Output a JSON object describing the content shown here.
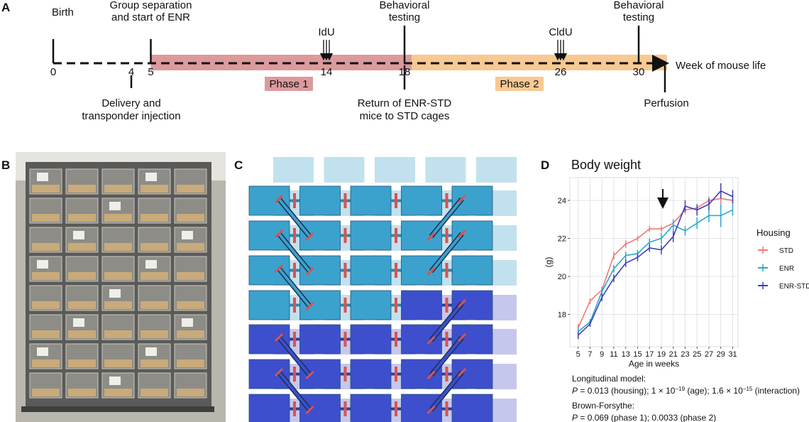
{
  "panel_a": {
    "letter": "A",
    "axis_label": "Week of mouse life",
    "weeks": [
      0,
      4,
      5,
      14,
      18,
      26,
      30
    ],
    "above": [
      {
        "lines": [
          "Birth"
        ]
      },
      {
        "lines": [
          "Group separation",
          "and start of ENR"
        ]
      },
      {
        "lines": [
          "IdU"
        ]
      },
      {
        "lines": [
          "Behavioral",
          "testing"
        ]
      },
      {
        "lines": [
          "CldU"
        ]
      },
      {
        "lines": [
          "Behavioral",
          "testing"
        ]
      }
    ],
    "below": [
      {
        "lines": [
          "Delivery and",
          "transponder injection"
        ]
      },
      {
        "lines": [
          "Return of ENR-STD",
          "mice to STD cages"
        ]
      },
      {
        "lines": [
          "Perfusion"
        ]
      }
    ],
    "phases": [
      "Phase 1",
      "Phase 2"
    ]
  },
  "panel_b": {
    "letter": "B"
  },
  "panel_c": {
    "letter": "C"
  },
  "panel_d": {
    "letter": "D"
  },
  "chart_data": {
    "type": "line",
    "title": "Body weight",
    "x_label": "Age in weeks",
    "y_label": "(g)",
    "legend_title": "Housing",
    "legend": "right",
    "grid": true,
    "x": [
      5,
      7,
      9,
      11,
      13,
      15,
      17,
      19,
      21,
      23,
      25,
      27,
      29,
      31
    ],
    "xlim": [
      3.6,
      31.9
    ],
    "xticks": [
      5,
      7,
      9,
      11,
      13,
      15,
      17,
      19,
      21,
      23,
      25,
      27,
      29,
      31
    ],
    "ylim": [
      16.3,
      25.2
    ],
    "yticks": [
      18,
      20,
      22,
      24
    ],
    "series": [
      {
        "name": "STD",
        "color": "#f07878",
        "values": [
          17.3,
          18.7,
          19.3,
          21.1,
          21.7,
          22.0,
          22.5,
          22.5,
          22.8,
          23.5,
          23.6,
          24.0,
          24.1,
          24.0
        ],
        "errors": [
          0.2,
          0.15,
          0.15,
          0.2,
          0.2,
          0.15,
          0.15,
          0.15,
          0.2,
          0.2,
          0.2,
          0.2,
          0.3,
          0.3
        ]
      },
      {
        "name": "ENR",
        "color": "#2aa7c9",
        "values": [
          17.1,
          17.6,
          19.2,
          20.4,
          21.1,
          21.2,
          21.8,
          22.0,
          22.7,
          22.4,
          22.8,
          23.2,
          23.2,
          23.5
        ],
        "errors": [
          0.2,
          0.15,
          0.2,
          0.2,
          0.2,
          0.2,
          0.2,
          0.3,
          0.3,
          0.25,
          0.3,
          0.35,
          0.6,
          0.3
        ]
      },
      {
        "name": "ENR-STD",
        "color": "#3b40b8",
        "values": [
          16.9,
          17.5,
          18.9,
          19.9,
          20.7,
          21.0,
          21.5,
          21.4,
          22.1,
          23.7,
          23.5,
          23.8,
          24.5,
          24.2
        ],
        "errors": [
          0.2,
          0.15,
          0.2,
          0.2,
          0.2,
          0.2,
          0.2,
          0.25,
          0.3,
          0.3,
          0.3,
          0.3,
          0.4,
          0.35
        ]
      }
    ],
    "annotations": [
      [
        {
          "text": "Longitudinal model:"
        }
      ],
      [
        {
          "text": "P",
          "italic": true
        },
        {
          "text": " = 0.013 (housing); 1 × 10"
        },
        {
          "text": "−19",
          "sup": true
        },
        {
          "text": " (age); 1.6 × 10"
        },
        {
          "text": "−15",
          "sup": true
        },
        {
          "text": " (interaction)"
        }
      ],
      [
        {
          "text": "Brown-Forsythe:"
        }
      ],
      [
        {
          "text": "P",
          "italic": true
        },
        {
          "text": " = 0.069 (phase 1); 0.0033 (phase 2)"
        }
      ]
    ]
  }
}
